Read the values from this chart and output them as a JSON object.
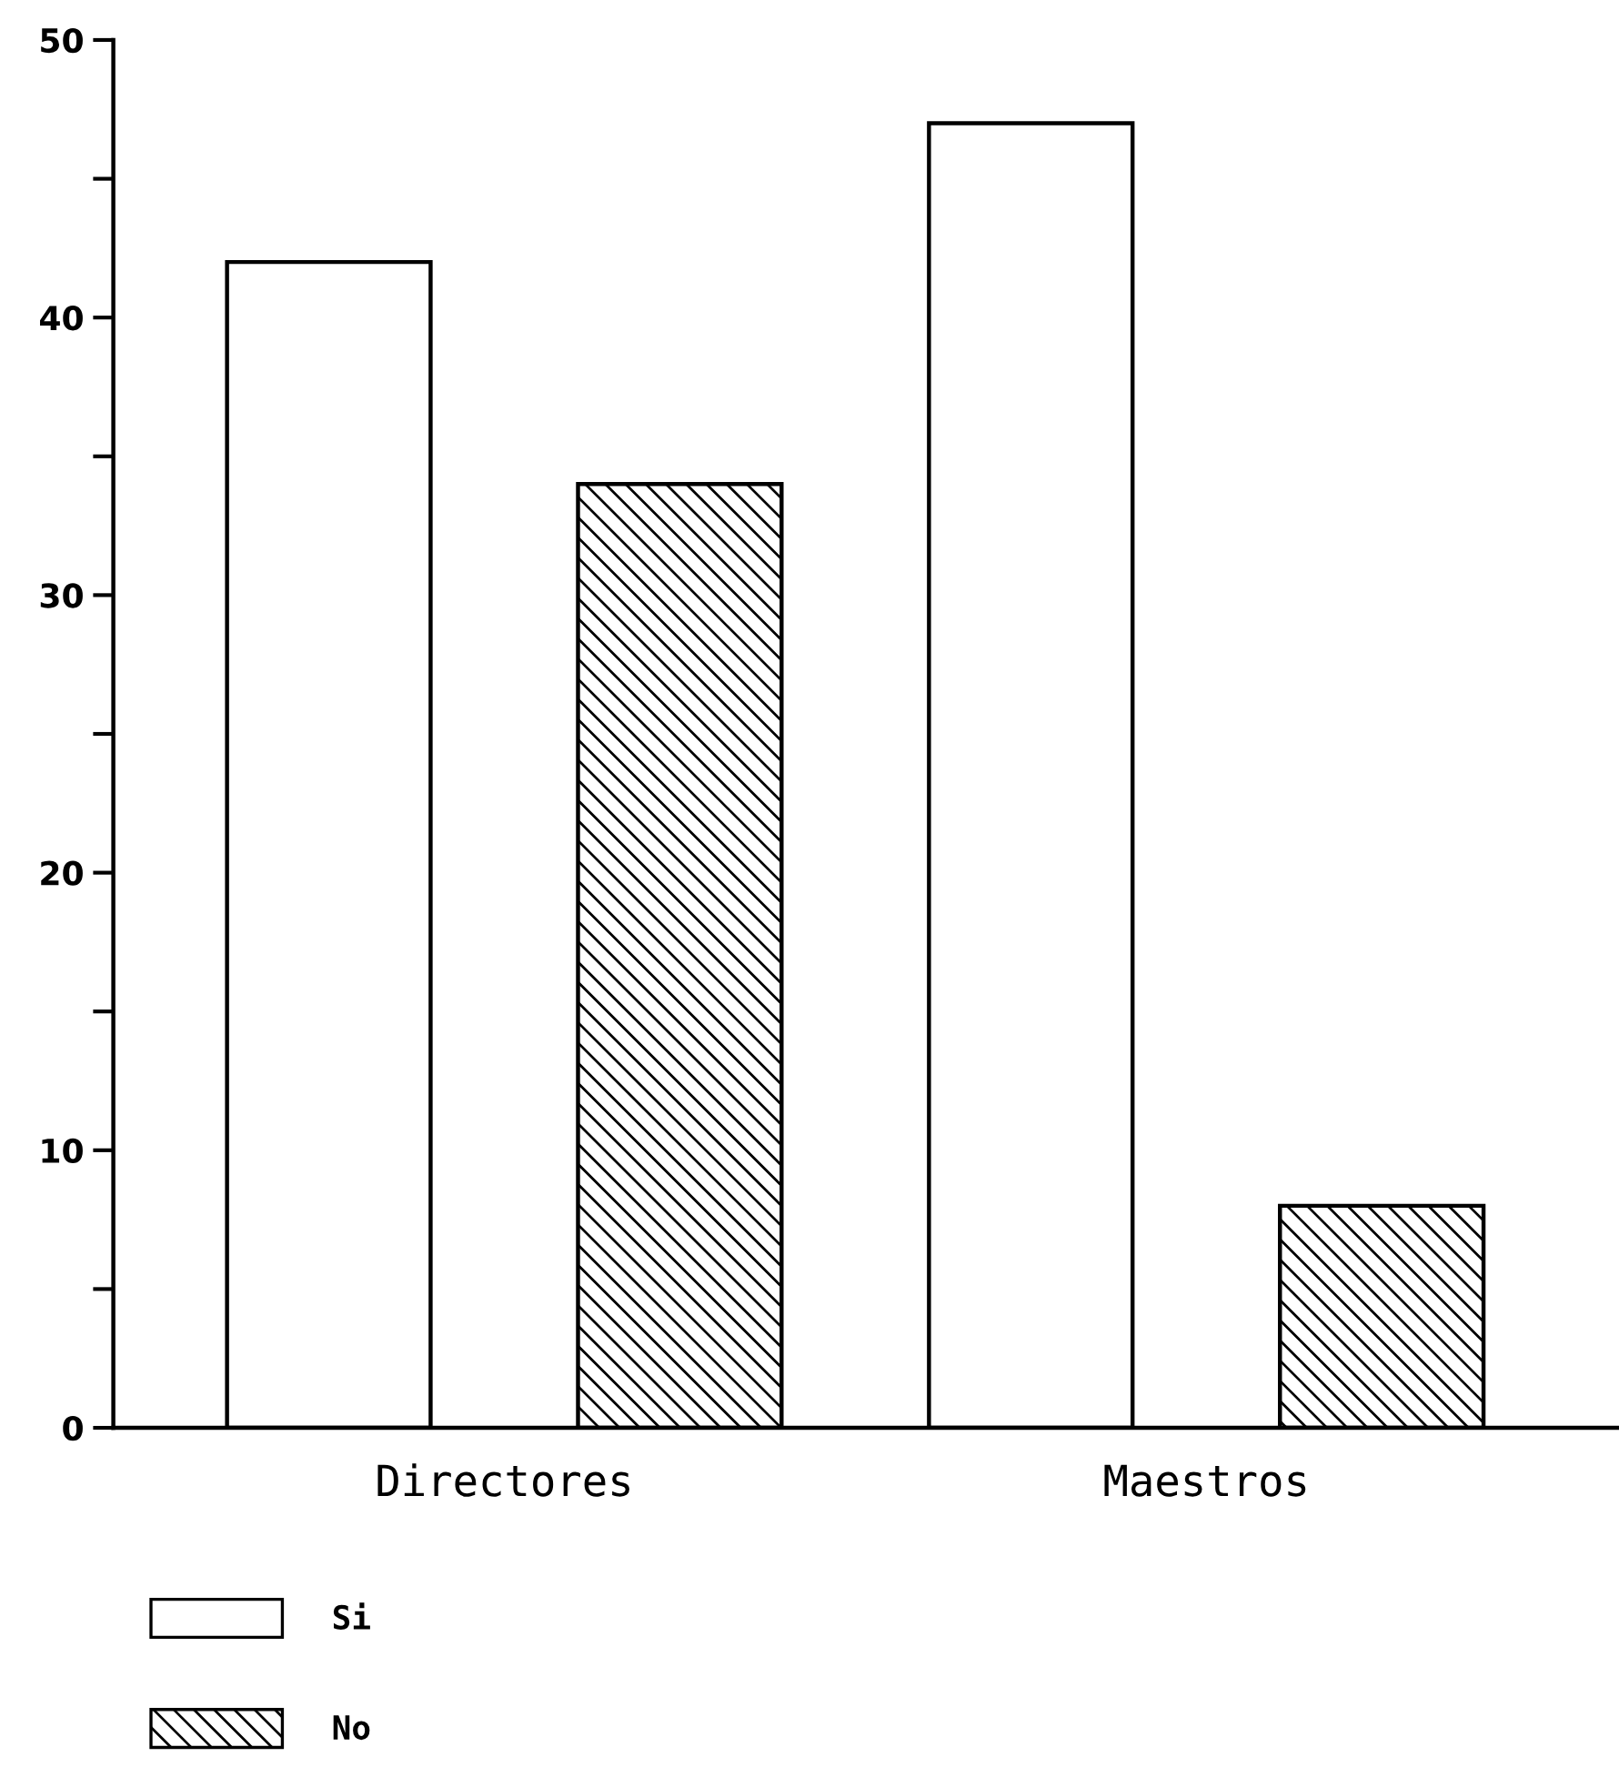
{
  "chart_data": {
    "type": "bar",
    "categories": [
      "Directores",
      "Maestros"
    ],
    "series": [
      {
        "name": "Si",
        "color": "#ffffff",
        "values": [
          42,
          47
        ]
      },
      {
        "name": "No",
        "color": "#000000",
        "values": [
          34,
          8
        ]
      }
    ],
    "ylim": [
      0,
      50
    ],
    "yticks": [
      0,
      {
        "value": 5,
        "label": null
      },
      10,
      {
        "value": 15,
        "label": null
      },
      20,
      {
        "value": 25,
        "label": null
      },
      30,
      {
        "value": 35,
        "label": null
      },
      40,
      {
        "value": 45,
        "label": null
      },
      50
    ],
    "grid": false,
    "legend": "bottom left"
  }
}
